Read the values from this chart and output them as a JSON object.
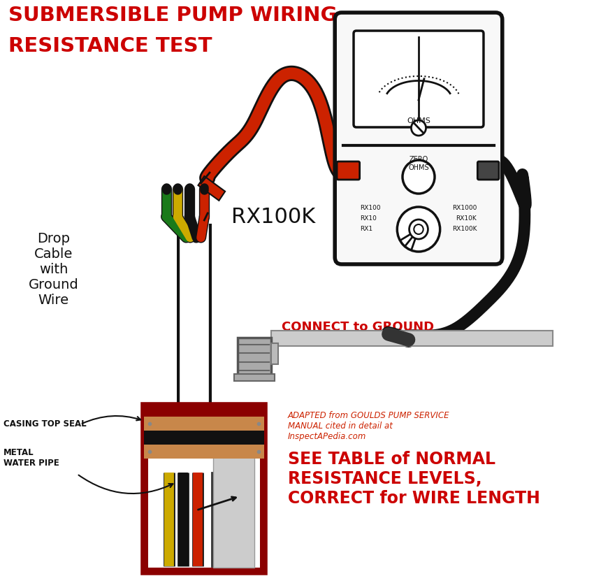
{
  "title_line1": "SUBMERSIBLE PUMP WIRING",
  "title_line2": "RESISTANCE TEST",
  "title_color": "#cc0000",
  "bg_color": "#ffffff",
  "label_drop_cable": "Drop\nCable\nwith\nGround\nWire",
  "label_casing": "CASING TOP SEAL",
  "label_metal_pipe": "METAL\nWATER PIPE",
  "label_rx100k": "RX100K",
  "label_connect": "CONNECT to GROUND",
  "label_connect_color": "#cc0000",
  "label_source": "ADAPTED from GOULDS PUMP SERVICE\nMANUAL cited in detail at\nInspectAPedia.com",
  "label_see_table": "SEE TABLE of NORMAL\nRESISTANCE LEVELS,\nCORRECT for WIRE LENGTH",
  "label_see_table_color": "#cc0000",
  "wire_colors": [
    "#1a7a1a",
    "#ccaa00",
    "#111111",
    "#cc2200"
  ],
  "casing_color": "#8b0000",
  "seal_color": "#c8874a",
  "pipe_color": "#bbbbbb"
}
